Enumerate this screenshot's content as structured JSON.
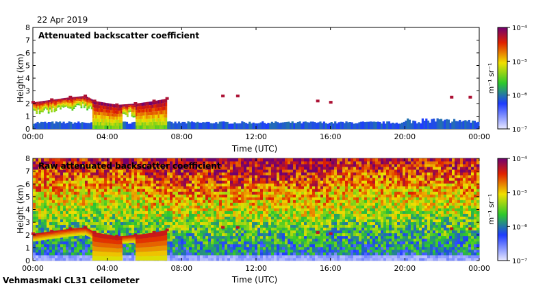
{
  "date": "22 Apr 2019",
  "footer": "Vehmasmaki CL31 ceilometer",
  "chart_data": [
    {
      "type": "heatmap",
      "title": "Attenuated backscatter coefficient",
      "xlabel": "Time (UTC)",
      "ylabel": "Height (km)",
      "x_ticks": [
        "00:00",
        "04:00",
        "08:00",
        "12:00",
        "16:00",
        "20:00",
        "00:00"
      ],
      "xlim_hours": [
        0,
        24
      ],
      "y_ticks": [
        0,
        1,
        2,
        3,
        4,
        5,
        6,
        7,
        8
      ],
      "ylim_km": [
        0,
        8
      ],
      "colorbar": {
        "label": "m⁻¹ sr⁻¹",
        "ticks": [
          "10⁻⁴",
          "10⁻⁵",
          "10⁻⁶",
          "10⁻⁷"
        ],
        "scale": "log",
        "range": [
          1e-07,
          0.0001
        ]
      },
      "features": {
        "aerosol_layer_height_km": 0.5,
        "cloud_base_km": [
          {
            "t": 0.0,
            "h": 2.1
          },
          {
            "t": 1.0,
            "h": 2.3
          },
          {
            "t": 2.0,
            "h": 2.5
          },
          {
            "t": 2.8,
            "h": 2.6
          },
          {
            "t": 3.3,
            "h": 2.2
          },
          {
            "t": 4.5,
            "h": 1.9
          },
          {
            "t": 5.5,
            "h": 2.0
          },
          {
            "t": 6.5,
            "h": 2.2
          },
          {
            "t": 7.2,
            "h": 2.4
          },
          {
            "t": 10.2,
            "h": 2.6
          },
          {
            "t": 11.0,
            "h": 2.6
          },
          {
            "t": 15.3,
            "h": 2.2
          },
          {
            "t": 16.0,
            "h": 2.1
          },
          {
            "t": 22.5,
            "h": 2.5
          },
          {
            "t": 23.5,
            "h": 2.5
          }
        ]
      }
    },
    {
      "type": "heatmap",
      "title": "Raw attenuated backscatter coefficient",
      "xlabel": "Time (UTC)",
      "ylabel": "Height (km)",
      "x_ticks": [
        "00:00",
        "04:00",
        "08:00",
        "12:00",
        "16:00",
        "20:00",
        "00:00"
      ],
      "xlim_hours": [
        0,
        24
      ],
      "y_ticks": [
        0,
        1,
        2,
        3,
        4,
        5,
        6,
        7,
        8
      ],
      "ylim_km": [
        0,
        8
      ],
      "colorbar": {
        "label": "m⁻¹ sr⁻¹",
        "ticks": [
          "10⁻⁴",
          "10⁻⁵",
          "10⁻⁶",
          "10⁻⁷"
        ],
        "scale": "log",
        "range": [
          1e-07,
          0.0001
        ]
      }
    }
  ],
  "colors": {
    "low": "#c8c8ff",
    "mid_blue": "#1e3cff",
    "green": "#2cc82c",
    "yellow": "#f0e000",
    "red": "#e02000",
    "high": "#700070"
  }
}
